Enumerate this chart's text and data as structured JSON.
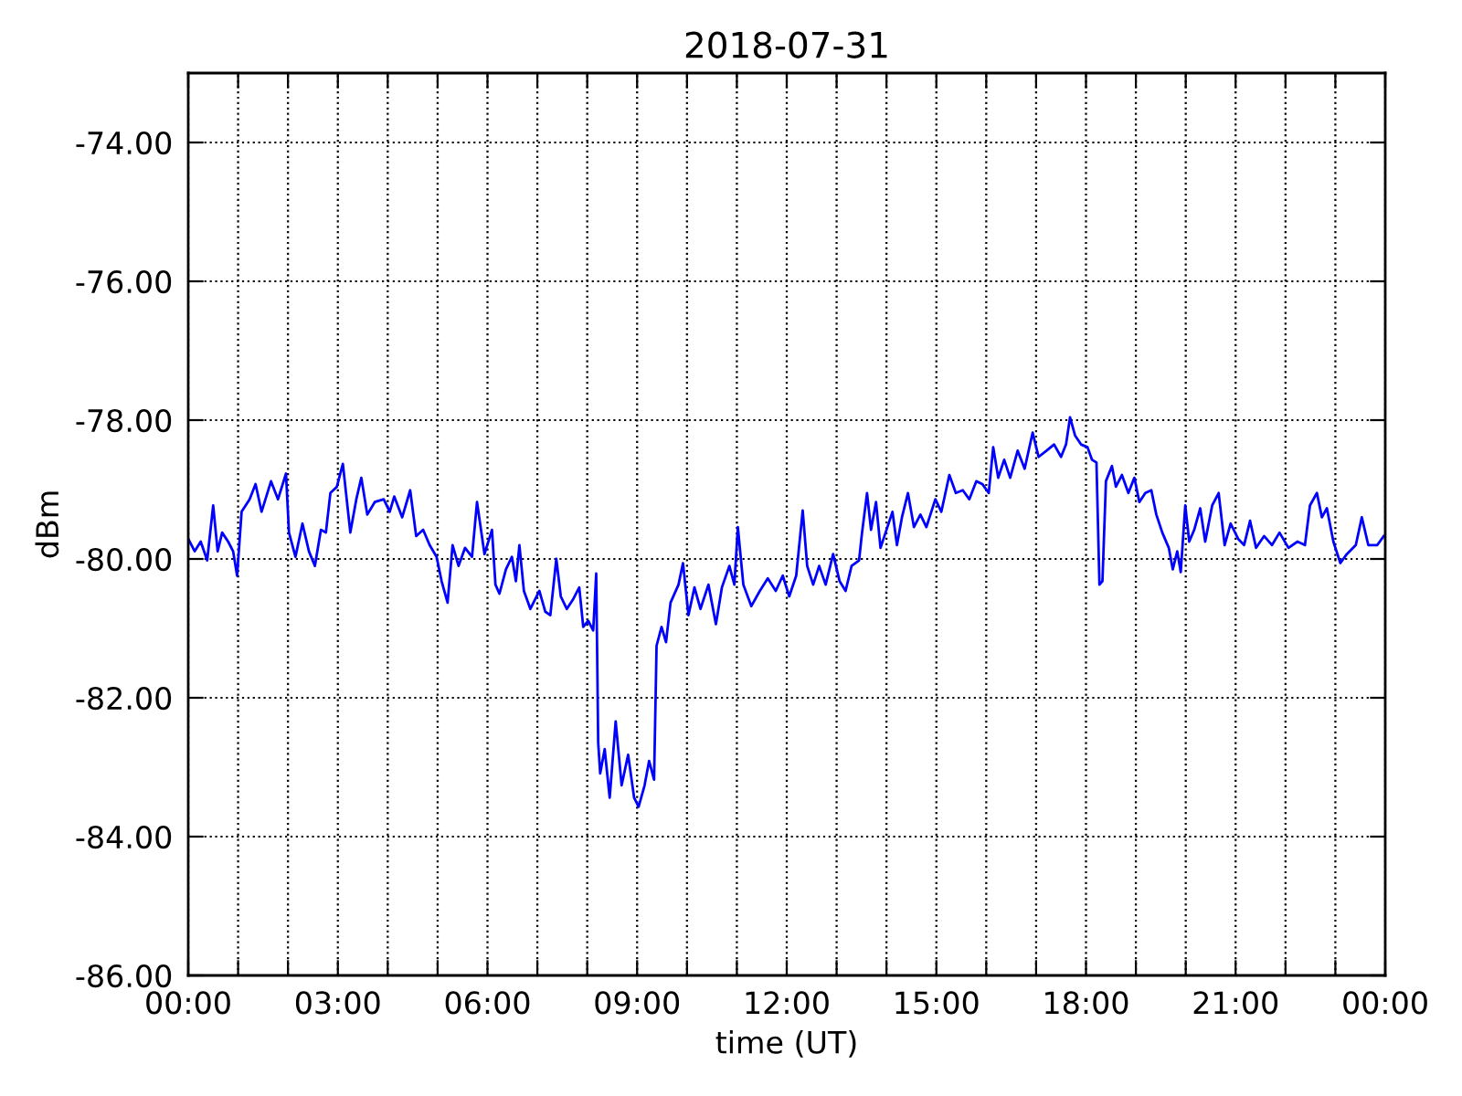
{
  "chart_data": {
    "type": "line",
    "title": "2018-07-31",
    "xlabel": "time (UT)",
    "ylabel": "dBm",
    "xlim": [
      0,
      24
    ],
    "xticks": [
      {
        "value": 0,
        "label": "00:00"
      },
      {
        "value": 1,
        "label": null
      },
      {
        "value": 2,
        "label": null
      },
      {
        "value": 3,
        "label": "03:00"
      },
      {
        "value": 4,
        "label": null
      },
      {
        "value": 5,
        "label": null
      },
      {
        "value": 6,
        "label": "06:00"
      },
      {
        "value": 7,
        "label": null
      },
      {
        "value": 8,
        "label": null
      },
      {
        "value": 9,
        "label": "09:00"
      },
      {
        "value": 10,
        "label": null
      },
      {
        "value": 11,
        "label": null
      },
      {
        "value": 12,
        "label": "12:00"
      },
      {
        "value": 13,
        "label": null
      },
      {
        "value": 14,
        "label": null
      },
      {
        "value": 15,
        "label": "15:00"
      },
      {
        "value": 16,
        "label": null
      },
      {
        "value": 17,
        "label": null
      },
      {
        "value": 18,
        "label": "18:00"
      },
      {
        "value": 19,
        "label": null
      },
      {
        "value": 20,
        "label": null
      },
      {
        "value": 21,
        "label": "21:00"
      },
      {
        "value": 22,
        "label": null
      },
      {
        "value": 23,
        "label": null
      },
      {
        "value": 24,
        "label": "00:00"
      }
    ],
    "ylim": [
      -86,
      -73
    ],
    "yticks": [
      {
        "value": -86,
        "label": "-86.00"
      },
      {
        "value": -84,
        "label": "-84.00"
      },
      {
        "value": -82,
        "label": "-82.00"
      },
      {
        "value": -80,
        "label": "-80.00"
      },
      {
        "value": -78,
        "label": "-78.00"
      },
      {
        "value": -76,
        "label": "-76.00"
      },
      {
        "value": -74,
        "label": "-74.00"
      }
    ],
    "grid": true,
    "line_style": "solid",
    "series": [
      {
        "color": "#0000ff",
        "x": [
          0,
          0.13,
          0.25,
          0.38,
          0.5,
          0.59,
          0.68,
          0.8,
          0.9,
          0.98,
          1.07,
          1.23,
          1.35,
          1.47,
          1.66,
          1.8,
          1.96,
          2.02,
          2.15,
          2.29,
          2.42,
          2.54,
          2.66,
          2.76,
          2.85,
          2.98,
          3.1,
          3.25,
          3.37,
          3.47,
          3.59,
          3.74,
          3.92,
          4.04,
          4.13,
          4.29,
          4.45,
          4.57,
          4.71,
          4.84,
          4.98,
          5.08,
          5.2,
          5.3,
          5.42,
          5.55,
          5.69,
          5.79,
          5.94,
          6.09,
          6.16,
          6.24,
          6.37,
          6.49,
          6.57,
          6.64,
          6.73,
          6.86,
          7.04,
          7.16,
          7.26,
          7.38,
          7.47,
          7.59,
          7.71,
          7.84,
          7.92,
          8.02,
          8.12,
          8.18,
          8.22,
          8.26,
          8.35,
          8.45,
          8.57,
          8.69,
          8.82,
          8.94,
          9.03,
          9.15,
          9.24,
          9.34,
          9.39,
          9.49,
          9.58,
          9.67,
          9.83,
          9.92,
          10.03,
          10.15,
          10.27,
          10.43,
          10.58,
          10.7,
          10.85,
          10.95,
          11.02,
          11.13,
          11.29,
          11.46,
          11.62,
          11.78,
          11.92,
          12.05,
          12.19,
          12.32,
          12.41,
          12.53,
          12.65,
          12.78,
          12.93,
          13.06,
          13.18,
          13.3,
          13.45,
          13.51,
          13.61,
          13.69,
          13.79,
          13.88,
          14.0,
          14.12,
          14.21,
          14.31,
          14.43,
          14.55,
          14.68,
          14.8,
          14.98,
          15.1,
          15.26,
          15.39,
          15.53,
          15.66,
          15.8,
          15.92,
          16.05,
          16.14,
          16.24,
          16.36,
          16.48,
          16.63,
          16.77,
          16.93,
          17.05,
          17.21,
          17.36,
          17.5,
          17.6,
          17.68,
          17.78,
          17.9,
          18.03,
          18.12,
          18.21,
          18.27,
          18.33,
          18.4,
          18.52,
          18.6,
          18.72,
          18.85,
          18.97,
          19.07,
          19.19,
          19.31,
          19.41,
          19.53,
          19.66,
          19.74,
          19.83,
          19.9,
          19.99,
          20.07,
          20.17,
          20.29,
          20.39,
          20.53,
          20.66,
          20.78,
          20.9,
          21.05,
          21.17,
          21.29,
          21.41,
          21.57,
          21.73,
          21.88,
          22.06,
          22.24,
          22.39,
          22.49,
          22.63,
          22.73,
          22.83,
          22.96,
          23.1,
          23.23,
          23.41,
          23.53,
          23.66,
          23.84,
          23.97
        ],
        "values": [
          -79.71,
          -79.89,
          -79.75,
          -80.02,
          -79.23,
          -79.89,
          -79.62,
          -79.75,
          -79.89,
          -80.24,
          -79.32,
          -79.14,
          -78.92,
          -79.32,
          -78.88,
          -79.14,
          -78.77,
          -79.62,
          -79.97,
          -79.49,
          -79.89,
          -80.1,
          -79.58,
          -79.62,
          -79.05,
          -78.96,
          -78.63,
          -79.62,
          -79.14,
          -78.83,
          -79.36,
          -79.18,
          -79.14,
          -79.32,
          -79.1,
          -79.4,
          -79.01,
          -79.67,
          -79.58,
          -79.8,
          -79.97,
          -80.32,
          -80.63,
          -79.8,
          -80.1,
          -79.84,
          -79.97,
          -79.18,
          -79.93,
          -79.58,
          -80.37,
          -80.5,
          -80.15,
          -79.97,
          -80.32,
          -79.8,
          -80.46,
          -80.72,
          -80.46,
          -80.76,
          -80.81,
          -80.0,
          -80.54,
          -80.72,
          -80.59,
          -80.41,
          -80.98,
          -80.89,
          -81.03,
          -80.21,
          -82.65,
          -83.09,
          -82.74,
          -83.44,
          -82.34,
          -83.26,
          -82.82,
          -83.44,
          -83.57,
          -83.26,
          -82.91,
          -83.18,
          -81.25,
          -80.98,
          -81.2,
          -80.63,
          -80.37,
          -80.06,
          -80.81,
          -80.41,
          -80.72,
          -80.37,
          -80.94,
          -80.41,
          -80.1,
          -80.37,
          -79.54,
          -80.37,
          -80.68,
          -80.46,
          -80.28,
          -80.46,
          -80.24,
          -80.54,
          -80.24,
          -79.3,
          -80.1,
          -80.37,
          -80.1,
          -80.37,
          -79.93,
          -80.32,
          -80.46,
          -80.1,
          -80.02,
          -79.62,
          -79.05,
          -79.58,
          -79.18,
          -79.84,
          -79.58,
          -79.32,
          -79.8,
          -79.4,
          -79.05,
          -79.54,
          -79.36,
          -79.54,
          -79.14,
          -79.32,
          -78.79,
          -79.05,
          -79.01,
          -79.14,
          -78.88,
          -78.92,
          -79.05,
          -78.39,
          -78.83,
          -78.57,
          -78.83,
          -78.44,
          -78.7,
          -78.18,
          -78.53,
          -78.44,
          -78.35,
          -78.53,
          -78.35,
          -77.96,
          -78.22,
          -78.35,
          -78.39,
          -78.57,
          -78.61,
          -80.37,
          -80.32,
          -78.88,
          -78.66,
          -78.96,
          -78.79,
          -79.05,
          -78.83,
          -79.18,
          -79.05,
          -79.01,
          -79.36,
          -79.62,
          -79.84,
          -80.15,
          -79.89,
          -80.19,
          -79.23,
          -79.75,
          -79.58,
          -79.27,
          -79.75,
          -79.23,
          -79.05,
          -79.8,
          -79.49,
          -79.71,
          -79.8,
          -79.45,
          -79.84,
          -79.67,
          -79.8,
          -79.62,
          -79.84,
          -79.75,
          -79.8,
          -79.23,
          -79.05,
          -79.4,
          -79.27,
          -79.75,
          -80.06,
          -79.93,
          -79.8,
          -79.4,
          -79.8,
          -79.8,
          -79.67
        ]
      }
    ]
  }
}
